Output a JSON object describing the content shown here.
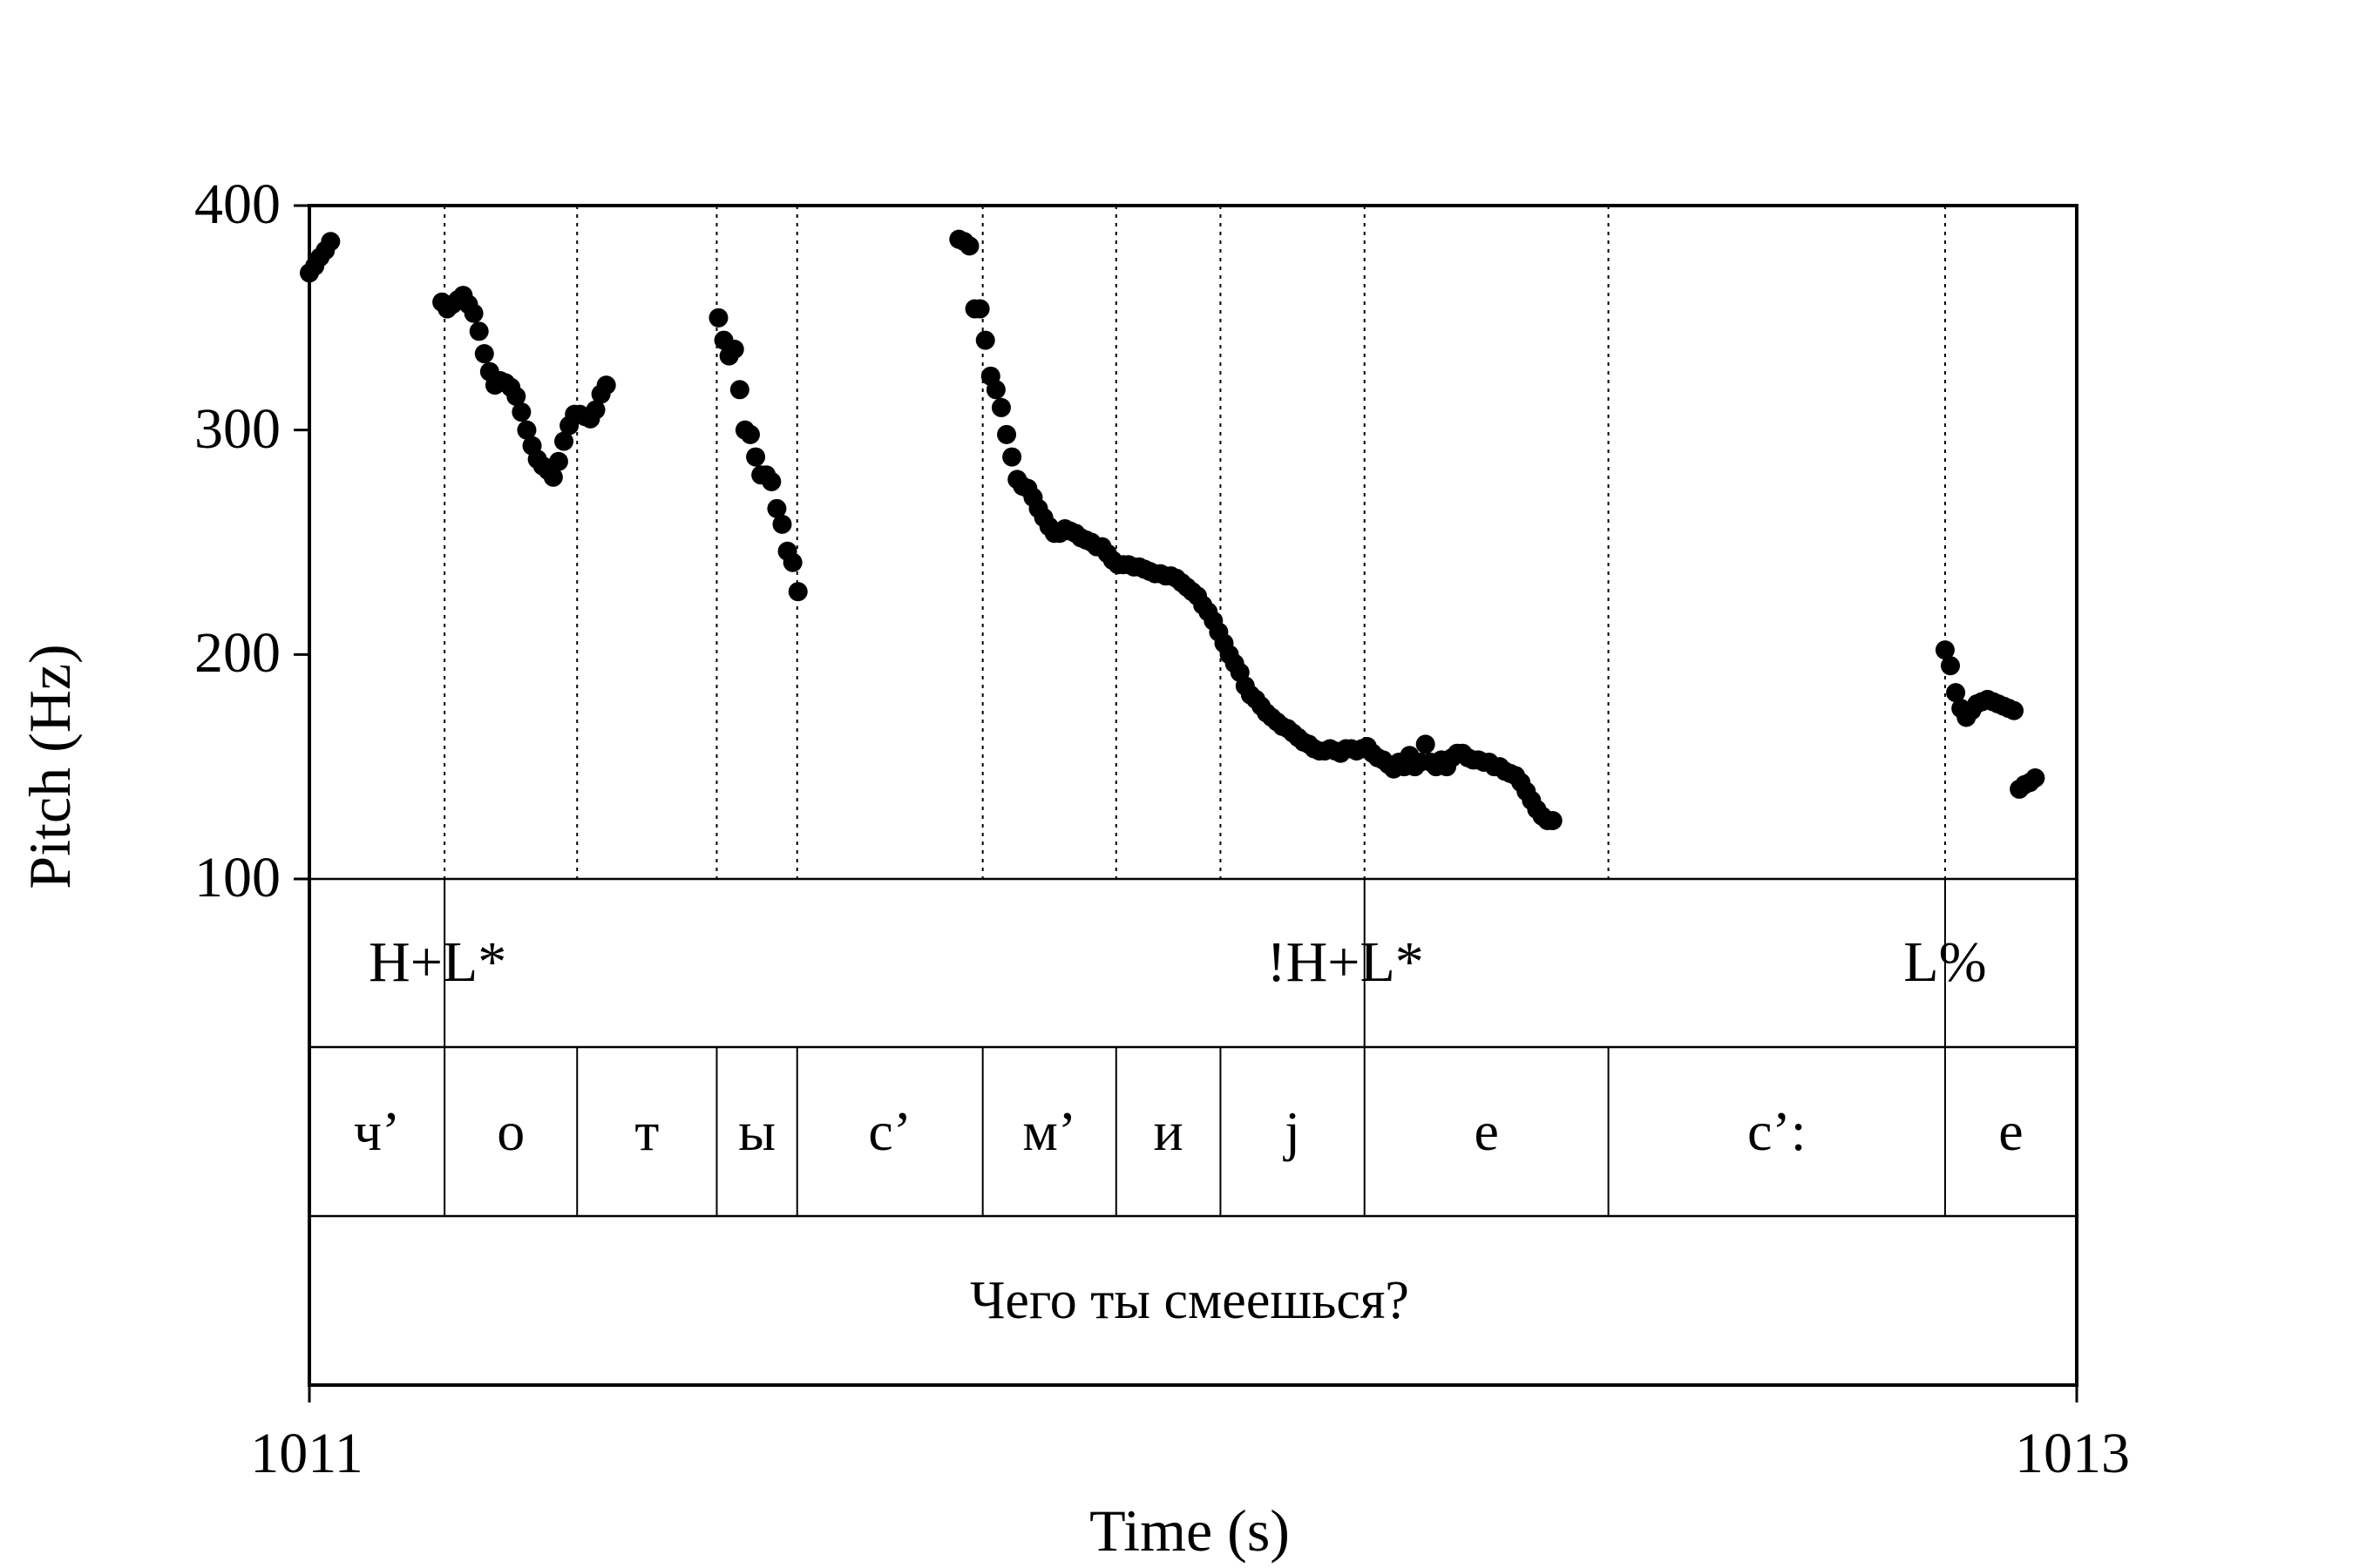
{
  "chart_data": {
    "type": "scatter",
    "title": "",
    "xlabel": "Time (s)",
    "ylabel": "Pitch (Hz)",
    "xlim": [
      1011,
      1013
    ],
    "ylim": [
      100,
      400
    ],
    "x_ticks": [
      "1011",
      "1013"
    ],
    "y_ticks": [
      "400",
      "300",
      "200",
      "100"
    ],
    "colors": {
      "points": "#000000",
      "axes": "#000000",
      "boundaries": "#000000"
    },
    "grid": false,
    "boundary_times": [
      1011.153,
      1011.303,
      1011.461,
      1011.552,
      1011.762,
      1011.913,
      1012.031,
      1012.194,
      1012.47,
      1012.851
    ],
    "tiers": {
      "tones": [
        {
          "label": "H+L*",
          "time": 1011.153
        },
        {
          "label": "!H+L*",
          "time": 1012.194
        },
        {
          "label": "L%",
          "time": 1012.851
        }
      ],
      "segments": [
        {
          "label": "ч’",
          "start": 1011.0,
          "end": 1011.153
        },
        {
          "label": "о",
          "start": 1011.153,
          "end": 1011.303
        },
        {
          "label": "т",
          "start": 1011.303,
          "end": 1011.461
        },
        {
          "label": "ы",
          "start": 1011.461,
          "end": 1011.552
        },
        {
          "label": "с’",
          "start": 1011.552,
          "end": 1011.762
        },
        {
          "label": "м’",
          "start": 1011.762,
          "end": 1011.913
        },
        {
          "label": "и",
          "start": 1011.913,
          "end": 1012.031
        },
        {
          "label": "j",
          "start": 1012.031,
          "end": 1012.194
        },
        {
          "label": "е",
          "start": 1012.194,
          "end": 1012.47
        },
        {
          "label": "с’:",
          "start": 1012.47,
          "end": 1012.851
        },
        {
          "label": "е",
          "start": 1012.851,
          "end": 1013.0
        }
      ],
      "sentence": "Чего ты смеешься?"
    },
    "series": [
      {
        "points": [
          [
            1011.0,
            370
          ],
          [
            1011.006,
            373
          ],
          [
            1011.012,
            377
          ],
          [
            1011.018,
            380
          ],
          [
            1011.024,
            384
          ],
          [
            1011.15,
            357
          ],
          [
            1011.156,
            354
          ],
          [
            1011.162,
            356
          ],
          [
            1011.168,
            358
          ],
          [
            1011.174,
            360
          ],
          [
            1011.18,
            356
          ],
          [
            1011.186,
            352
          ],
          [
            1011.192,
            344
          ],
          [
            1011.198,
            334
          ],
          [
            1011.204,
            326
          ],
          [
            1011.21,
            320
          ],
          [
            1011.216,
            322
          ],
          [
            1011.222,
            321
          ],
          [
            1011.228,
            319
          ],
          [
            1011.234,
            315
          ],
          [
            1011.24,
            308
          ],
          [
            1011.246,
            300
          ],
          [
            1011.252,
            293
          ],
          [
            1011.258,
            287
          ],
          [
            1011.264,
            284
          ],
          [
            1011.27,
            282
          ],
          [
            1011.276,
            279
          ],
          [
            1011.282,
            286
          ],
          [
            1011.288,
            295
          ],
          [
            1011.294,
            302
          ],
          [
            1011.3,
            307
          ],
          [
            1011.306,
            307
          ],
          [
            1011.312,
            306
          ],
          [
            1011.318,
            305
          ],
          [
            1011.324,
            309
          ],
          [
            1011.33,
            316
          ],
          [
            1011.336,
            320
          ],
          [
            1011.463,
            350
          ],
          [
            1011.469,
            340
          ],
          [
            1011.475,
            333
          ],
          [
            1011.481,
            336
          ],
          [
            1011.487,
            318
          ],
          [
            1011.493,
            300
          ],
          [
            1011.499,
            298
          ],
          [
            1011.505,
            288
          ],
          [
            1011.511,
            280
          ],
          [
            1011.517,
            280
          ],
          [
            1011.523,
            277
          ],
          [
            1011.529,
            265
          ],
          [
            1011.535,
            258
          ],
          [
            1011.541,
            246
          ],
          [
            1011.547,
            241
          ],
          [
            1011.553,
            228
          ],
          [
            1011.735,
            385
          ],
          [
            1011.741,
            384
          ],
          [
            1011.747,
            382
          ],
          [
            1011.753,
            354
          ],
          [
            1011.759,
            354
          ],
          [
            1011.765,
            340
          ],
          [
            1011.771,
            324
          ],
          [
            1011.777,
            318
          ],
          [
            1011.783,
            310
          ],
          [
            1011.789,
            298
          ],
          [
            1011.795,
            288
          ],
          [
            1011.801,
            278
          ],
          [
            1011.807,
            275
          ],
          [
            1011.813,
            274
          ],
          [
            1011.819,
            270
          ],
          [
            1011.825,
            265
          ],
          [
            1011.831,
            261
          ],
          [
            1011.837,
            257
          ],
          [
            1011.843,
            254
          ],
          [
            1011.849,
            254
          ],
          [
            1011.855,
            256
          ],
          [
            1011.861,
            255
          ],
          [
            1011.867,
            254
          ],
          [
            1011.873,
            252
          ],
          [
            1011.879,
            251
          ],
          [
            1011.885,
            250
          ],
          [
            1011.891,
            248
          ],
          [
            1011.897,
            248
          ],
          [
            1011.903,
            245
          ],
          [
            1011.909,
            242
          ],
          [
            1011.915,
            240
          ],
          [
            1011.921,
            240
          ],
          [
            1011.927,
            240
          ],
          [
            1011.933,
            239
          ],
          [
            1011.939,
            239
          ],
          [
            1011.945,
            238
          ],
          [
            1011.951,
            237
          ],
          [
            1011.957,
            236
          ],
          [
            1011.963,
            236
          ],
          [
            1011.969,
            235
          ],
          [
            1011.975,
            235
          ],
          [
            1011.981,
            234
          ],
          [
            1011.987,
            232
          ],
          [
            1011.993,
            230
          ],
          [
            1011.999,
            228
          ],
          [
            1012.005,
            226
          ],
          [
            1012.011,
            222
          ],
          [
            1012.017,
            219
          ],
          [
            1012.023,
            215
          ],
          [
            1012.029,
            210
          ],
          [
            1012.035,
            205
          ],
          [
            1012.041,
            200
          ],
          [
            1012.047,
            196
          ],
          [
            1012.053,
            192
          ],
          [
            1012.059,
            186
          ],
          [
            1012.065,
            182
          ],
          [
            1012.071,
            180
          ],
          [
            1012.077,
            177
          ],
          [
            1012.083,
            174
          ],
          [
            1012.089,
            172
          ],
          [
            1012.095,
            170
          ],
          [
            1012.101,
            168
          ],
          [
            1012.107,
            167
          ],
          [
            1012.113,
            165
          ],
          [
            1012.119,
            163
          ],
          [
            1012.125,
            161
          ],
          [
            1012.131,
            160
          ],
          [
            1012.137,
            158
          ],
          [
            1012.143,
            157
          ],
          [
            1012.149,
            157
          ],
          [
            1012.155,
            158
          ],
          [
            1012.161,
            157
          ],
          [
            1012.167,
            156
          ],
          [
            1012.173,
            158
          ],
          [
            1012.179,
            158
          ],
          [
            1012.185,
            157
          ],
          [
            1012.191,
            158
          ],
          [
            1012.197,
            159
          ],
          [
            1012.203,
            156
          ],
          [
            1012.209,
            154
          ],
          [
            1012.215,
            153
          ],
          [
            1012.221,
            151
          ],
          [
            1012.227,
            149
          ],
          [
            1012.233,
            152
          ],
          [
            1012.239,
            150
          ],
          [
            1012.245,
            155
          ],
          [
            1012.251,
            150
          ],
          [
            1012.257,
            152
          ],
          [
            1012.263,
            160
          ],
          [
            1012.269,
            152
          ],
          [
            1012.275,
            150
          ],
          [
            1012.281,
            153
          ],
          [
            1012.287,
            150
          ],
          [
            1012.293,
            154
          ],
          [
            1012.299,
            156
          ],
          [
            1012.305,
            156
          ],
          [
            1012.311,
            154
          ],
          [
            1012.317,
            153
          ],
          [
            1012.323,
            153
          ],
          [
            1012.329,
            152
          ],
          [
            1012.335,
            152
          ],
          [
            1012.341,
            150
          ],
          [
            1012.347,
            150
          ],
          [
            1012.353,
            148
          ],
          [
            1012.359,
            147
          ],
          [
            1012.365,
            146
          ],
          [
            1012.371,
            143
          ],
          [
            1012.377,
            139
          ],
          [
            1012.383,
            135
          ],
          [
            1012.389,
            131
          ],
          [
            1012.395,
            128
          ],
          [
            1012.401,
            126
          ],
          [
            1012.407,
            126
          ],
          [
            1012.851,
            202
          ],
          [
            1012.857,
            195
          ],
          [
            1012.863,
            183
          ],
          [
            1012.869,
            176
          ],
          [
            1012.875,
            172
          ],
          [
            1012.881,
            175
          ],
          [
            1012.887,
            178
          ],
          [
            1012.893,
            179
          ],
          [
            1012.899,
            180
          ],
          [
            1012.905,
            179
          ],
          [
            1012.911,
            178
          ],
          [
            1012.917,
            177
          ],
          [
            1012.923,
            176
          ],
          [
            1012.929,
            175
          ],
          [
            1012.935,
            140
          ],
          [
            1012.941,
            142
          ],
          [
            1012.947,
            143
          ],
          [
            1012.953,
            145
          ]
        ]
      }
    ]
  }
}
